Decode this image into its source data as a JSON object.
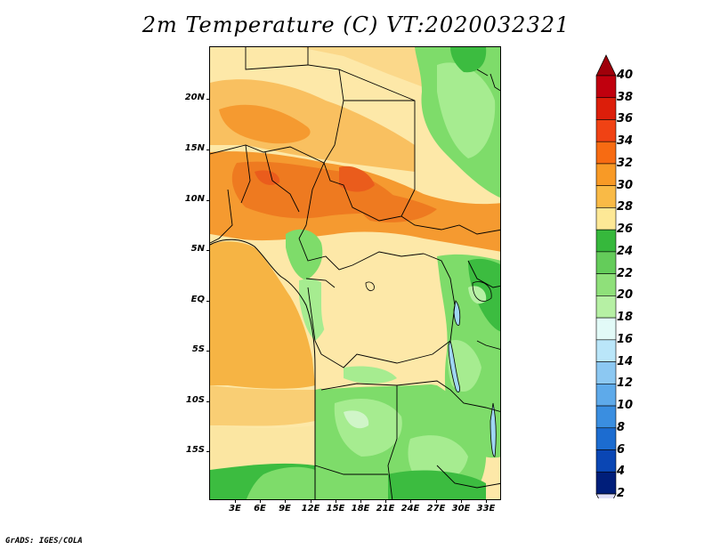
{
  "title": "2m Temperature (C) VT:2020032321",
  "credit": "GrADS: IGES/COLA",
  "latitude_labels": [
    "20N",
    "15N",
    "10N",
    "5N",
    "EQ",
    "5S",
    "10S",
    "15S"
  ],
  "longitude_labels": [
    "3E",
    "6E",
    "9E",
    "12E",
    "15E",
    "18E",
    "21E",
    "24E",
    "27E",
    "30E",
    "33E"
  ],
  "colorbar": {
    "levels": [
      "40",
      "38",
      "36",
      "34",
      "32",
      "30",
      "28",
      "26",
      "24",
      "22",
      "20",
      "18",
      "16",
      "14",
      "12",
      "10",
      "8",
      "6",
      "4",
      "2"
    ],
    "colors": [
      "#a0000a",
      "#c0000e",
      "#dc1e0a",
      "#f04214",
      "#f76b12",
      "#f89a26",
      "#f9ba46",
      "#fde896",
      "#36b83c",
      "#64cc5a",
      "#8fe07a",
      "#b6f0a4",
      "#e2faf7",
      "#bae6f9",
      "#8cc8f2",
      "#5eaaea",
      "#3a8ee0",
      "#1c6cd0",
      "#0a46b4",
      "#001e7a"
    ]
  },
  "map_colors": {
    "ocean_warm": "#f6b444",
    "ocean_mid": "#f9ce74",
    "ocean_cool": "#fbe6a2",
    "hot": "#f59a30",
    "very_hot": "#ee7a20",
    "hottest": "#ea5c1c",
    "warm": "#fbd88a",
    "mild": "#fde8a8",
    "green": "#7edc6a",
    "green_light": "#a6ec90",
    "green_dark": "#3cbc40",
    "cool": "#d0f5c8",
    "blue": "#9fd6f2",
    "border": "#000000"
  }
}
